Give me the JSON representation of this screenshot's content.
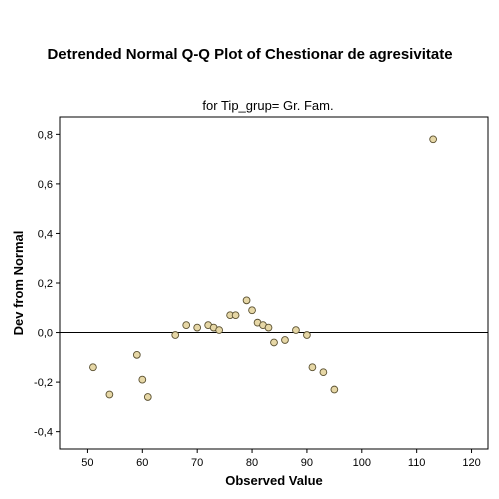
{
  "chart_data": {
    "type": "scatter",
    "title": "Detrended Normal Q-Q Plot of Chestionar de agresivitate",
    "subtitle": "for Tip_grup= Gr. Fam.",
    "xlabel": "Observed Value",
    "ylabel": "Dev from Normal",
    "xlim": [
      45,
      123
    ],
    "ylim": [
      -0.47,
      0.87
    ],
    "x_ticks": [
      50,
      60,
      70,
      80,
      90,
      100,
      110,
      120
    ],
    "x_tick_labels": [
      "50",
      "60",
      "70",
      "80",
      "90",
      "100",
      "110",
      "120"
    ],
    "y_ticks": [
      -0.4,
      -0.2,
      0.0,
      0.2,
      0.4,
      0.6,
      0.8
    ],
    "y_tick_labels": [
      "-0,4",
      "-0,2",
      "0,0",
      "0,2",
      "0,4",
      "0,6",
      "0,8"
    ],
    "reference_line_y": 0,
    "grid": false,
    "marker_color": "#e6d7a6",
    "marker_edge_color": "#5a5030",
    "points": [
      {
        "x": 51,
        "y": -0.14
      },
      {
        "x": 54,
        "y": -0.25
      },
      {
        "x": 59,
        "y": -0.09
      },
      {
        "x": 60,
        "y": -0.19
      },
      {
        "x": 61,
        "y": -0.26
      },
      {
        "x": 66,
        "y": -0.01
      },
      {
        "x": 68,
        "y": 0.03
      },
      {
        "x": 70,
        "y": 0.02
      },
      {
        "x": 72,
        "y": 0.03
      },
      {
        "x": 73,
        "y": 0.02
      },
      {
        "x": 74,
        "y": 0.01
      },
      {
        "x": 76,
        "y": 0.07
      },
      {
        "x": 77,
        "y": 0.07
      },
      {
        "x": 79,
        "y": 0.13
      },
      {
        "x": 80,
        "y": 0.09
      },
      {
        "x": 81,
        "y": 0.04
      },
      {
        "x": 82,
        "y": 0.03
      },
      {
        "x": 83,
        "y": 0.02
      },
      {
        "x": 84,
        "y": -0.04
      },
      {
        "x": 86,
        "y": -0.03
      },
      {
        "x": 88,
        "y": 0.01
      },
      {
        "x": 90,
        "y": -0.01
      },
      {
        "x": 91,
        "y": -0.14
      },
      {
        "x": 93,
        "y": -0.16
      },
      {
        "x": 95,
        "y": -0.23
      },
      {
        "x": 113,
        "y": 0.78
      }
    ]
  }
}
